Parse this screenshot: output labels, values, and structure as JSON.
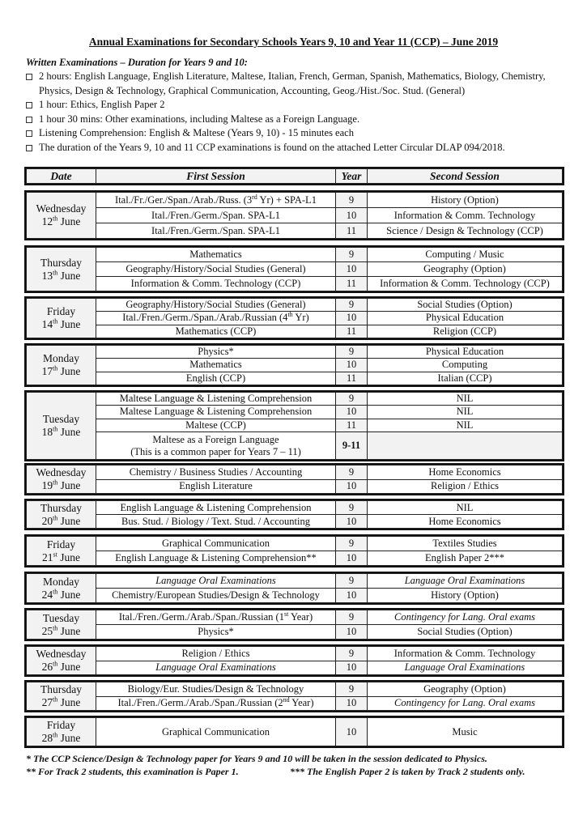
{
  "title": "Annual Examinations for Secondary Schools Years 9, 10 and Year 11 (CCP) – June 2019",
  "subheading": "Written Examinations – Duration for Years 9 and 10:",
  "bullets": [
    "2 hours: English Language, English Literature, Maltese, Italian, French, German, Spanish, Mathematics, Biology, Chemistry, Physics, Design & Technology, Graphical Communication, Accounting, Geog./Hist./Soc. Stud. (General)",
    "1 hour: Ethics, English Paper 2",
    "1 hour 30 mins: Other examinations, including Maltese as a Foreign Language.",
    "Listening Comprehension: English & Maltese (Years 9, 10) - 15 minutes each",
    "The duration of the Years 9, 10 and 11 CCP examinations is found on the attached Letter Circular DLAP 094/2018."
  ],
  "headers": {
    "date": "Date",
    "first": "First Session",
    "year": "Year",
    "second": "Second Session"
  },
  "days": [
    {
      "day": "Wednesday",
      "num": "12",
      "suffix": "th",
      "month": "June",
      "rows": [
        {
          "first": [
            "Ital./Fr./Ger./Span./Arab./Russ. (3",
            "rd",
            " Yr) + SPA-L1"
          ],
          "year": "9",
          "second": [
            "History (Option)"
          ]
        },
        {
          "first": [
            "Ital./Fren./Germ./Span. SPA-L1"
          ],
          "year": "10",
          "second": [
            "Information & Comm. Technology"
          ]
        },
        {
          "first": [
            "Ital./Fren./Germ./Span. SPA-L1"
          ],
          "year": "11",
          "second": [
            "Science / Design & Technology (CCP)"
          ]
        }
      ]
    },
    {
      "day": "Thursday",
      "num": "13",
      "suffix": "th",
      "month": "June",
      "rows": [
        {
          "first": [
            "Mathematics"
          ],
          "year": "9",
          "second": [
            "Computing / Music"
          ]
        },
        {
          "first": [
            "Geography/History/Social Studies (General)"
          ],
          "year": "10",
          "second": [
            "Geography (Option)"
          ]
        },
        {
          "first": [
            "Information & Comm. Technology (CCP)"
          ],
          "year": "11",
          "second": [
            "Information & Comm. Technology (CCP)"
          ]
        }
      ]
    },
    {
      "day": "Friday",
      "num": "14",
      "suffix": "th",
      "month": "June",
      "rows": [
        {
          "first": [
            "Geography/History/Social Studies (General)"
          ],
          "year": "9",
          "second": [
            "Social Studies (Option)"
          ]
        },
        {
          "first": [
            "Ital./Fren./Germ./Span./Arab./Russian (4",
            "th",
            " Yr)"
          ],
          "year": "10",
          "second": [
            "Physical Education"
          ]
        },
        {
          "first": [
            "Mathematics (CCP)"
          ],
          "year": "11",
          "second": [
            "Religion (CCP)"
          ]
        }
      ]
    },
    {
      "day": "Monday",
      "num": "17",
      "suffix": "th",
      "month": "June",
      "rows": [
        {
          "first": [
            "Physics*"
          ],
          "year": "9",
          "second": [
            "Physical Education"
          ]
        },
        {
          "first": [
            "Mathematics"
          ],
          "year": "10",
          "second": [
            "Computing"
          ]
        },
        {
          "first": [
            "English (CCP)"
          ],
          "year": "11",
          "second": [
            "Italian (CCP)"
          ]
        }
      ]
    },
    {
      "day": "Tuesday",
      "num": "18",
      "suffix": "th",
      "month": "June",
      "rows": [
        {
          "first": [
            "Maltese Language & Listening Comprehension"
          ],
          "year": "9",
          "second": [
            "NIL"
          ]
        },
        {
          "first": [
            "Maltese Language & Listening Comprehension"
          ],
          "year": "10",
          "second": [
            "NIL"
          ]
        },
        {
          "first": [
            "Maltese (CCP)"
          ],
          "year": "11",
          "second": [
            "NIL"
          ]
        },
        {
          "first": [
            "Maltese as a Foreign Language"
          ],
          "first2": "(This is a common paper for Years 7 – 11)",
          "year": "9-11",
          "year_bold": true,
          "second": [
            ""
          ],
          "second_grey": true,
          "tall": true
        }
      ]
    },
    {
      "day": "Wednesday",
      "num": "19",
      "suffix": "th",
      "month": "June",
      "rows": [
        {
          "first": [
            "Chemistry / Business Studies / Accounting"
          ],
          "year": "9",
          "second": [
            "Home Economics"
          ]
        },
        {
          "first": [
            "English Literature"
          ],
          "year": "10",
          "second": [
            "Religion / Ethics"
          ]
        }
      ]
    },
    {
      "day": "Thursday",
      "num": "20",
      "suffix": "th",
      "month": "June",
      "rows": [
        {
          "first": [
            "English Language & Listening Comprehension"
          ],
          "year": "9",
          "second": [
            "NIL"
          ]
        },
        {
          "first": [
            "Bus. Stud. / Biology / Text. Stud. / Accounting"
          ],
          "year": "10",
          "second": [
            "Home Economics"
          ]
        }
      ]
    },
    {
      "day": "Friday",
      "num": "21",
      "suffix": "st",
      "month": "June",
      "rows": [
        {
          "first": [
            "Graphical Communication"
          ],
          "year": "9",
          "second": [
            "Textiles Studies"
          ]
        },
        {
          "first": [
            "English Language & Listening Comprehension**"
          ],
          "year": "10",
          "second": [
            "English Paper 2***"
          ]
        }
      ]
    },
    {
      "day": "Monday",
      "num": "24",
      "suffix": "th",
      "month": "June",
      "rows": [
        {
          "first": [
            "Language Oral Examinations"
          ],
          "first_italic": true,
          "year": "9",
          "second": [
            "Language Oral Examinations"
          ],
          "second_italic": true
        },
        {
          "first": [
            "Chemistry/European Studies/Design & Technology"
          ],
          "year": "10",
          "second": [
            "History (Option)"
          ]
        }
      ]
    },
    {
      "day": "Tuesday",
      "num": "25",
      "suffix": "th",
      "month": "June",
      "rows": [
        {
          "first": [
            "Ital./Fren./Germ./Arab./Span./Russian (1",
            "st",
            " Year)"
          ],
          "year": "9",
          "second": [
            "Contingency for Lang. Oral exams"
          ],
          "second_italic": true
        },
        {
          "first": [
            "Physics*"
          ],
          "year": "10",
          "second": [
            "Social Studies (Option)"
          ]
        }
      ]
    },
    {
      "day": "Wednesday",
      "num": "26",
      "suffix": "th",
      "month": "June",
      "rows": [
        {
          "first": [
            "Religion / Ethics"
          ],
          "year": "9",
          "second": [
            "Information & Comm. Technology"
          ]
        },
        {
          "first": [
            "Language Oral Examinations"
          ],
          "first_italic": true,
          "year": "10",
          "second": [
            "Language Oral Examinations"
          ],
          "second_italic": true
        }
      ]
    },
    {
      "day": "Thursday",
      "num": "27",
      "suffix": "th",
      "month": "June",
      "rows": [
        {
          "first": [
            "Biology/Eur. Studies/Design & Technology"
          ],
          "year": "9",
          "second": [
            "Geography (Option)"
          ]
        },
        {
          "first": [
            "Ital./Fren./Germ./Arab./Span./Russian (2",
            "nd",
            " Year)"
          ],
          "year": "10",
          "second": [
            "Contingency for Lang. Oral exams"
          ],
          "second_italic": true
        }
      ]
    },
    {
      "day": "Friday",
      "num": "28",
      "suffix": "th",
      "month": "June",
      "rows": [
        {
          "first": [
            "Graphical Communication"
          ],
          "year": "10",
          "second": [
            "Music"
          ],
          "tall": true
        }
      ]
    }
  ],
  "footnotes": [
    "* The CCP Science/Design & Technology paper for Years 9 and 10 will be taken in the session dedicated to Physics.",
    "** For Track 2 students, this examination is Paper 1.",
    "*** The English Paper 2 is taken by Track 2 students only."
  ]
}
